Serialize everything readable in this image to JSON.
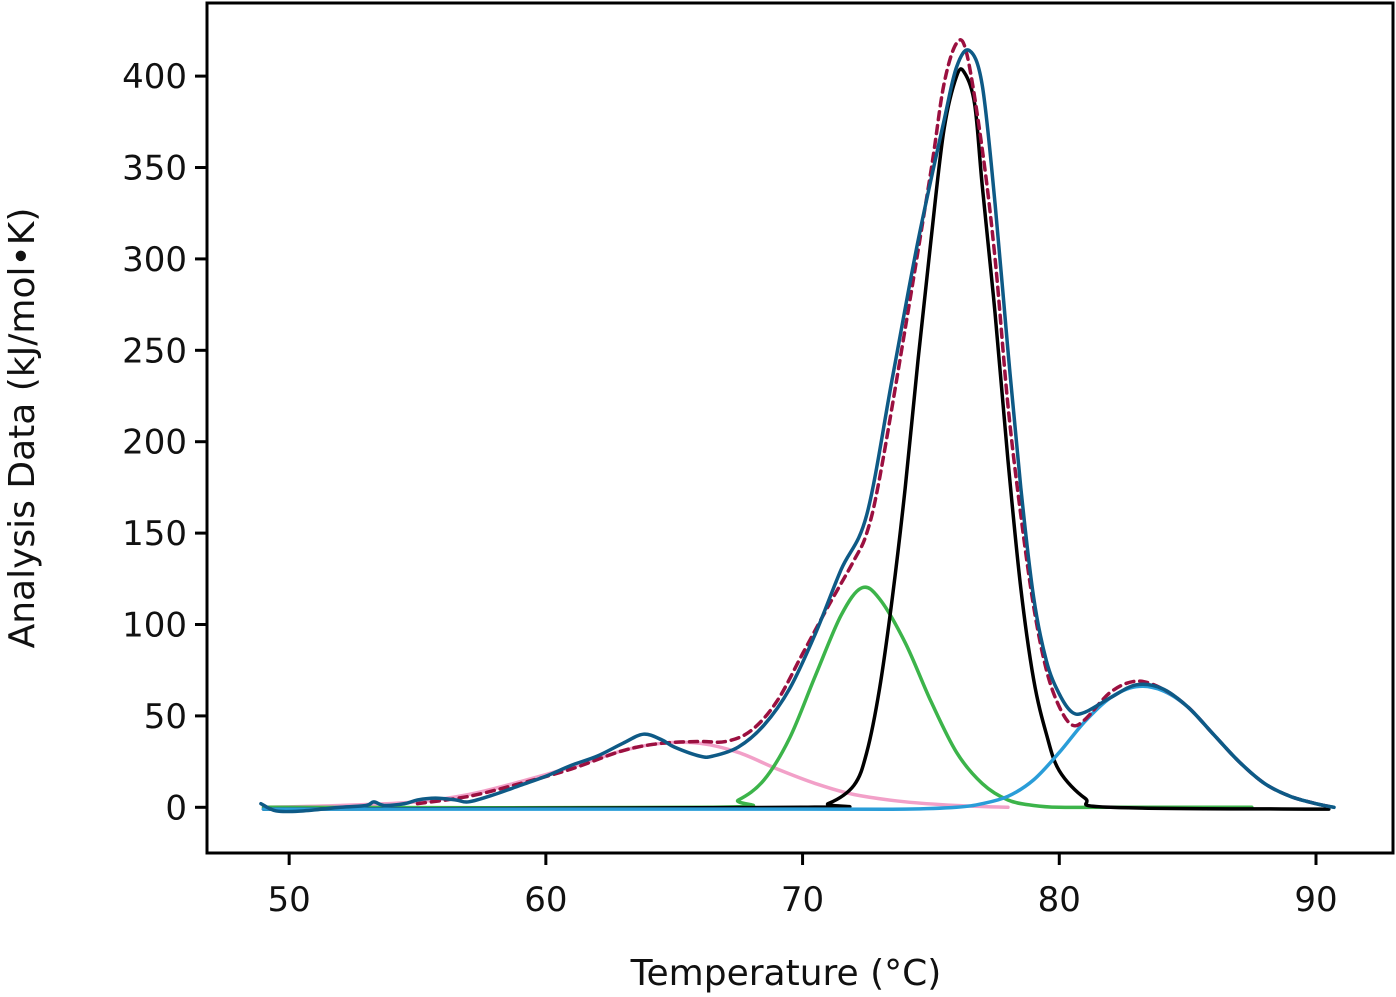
{
  "chart_data": {
    "type": "line",
    "xlabel": "Temperature (°C)",
    "ylabel": "Analysis Data (kJ/mol•K)",
    "xlim": [
      46.8,
      93.0
    ],
    "ylim": [
      -25,
      440
    ],
    "xticks": [
      50,
      60,
      70,
      80,
      90
    ],
    "yticks": [
      0,
      50,
      100,
      150,
      200,
      250,
      300,
      350,
      400
    ],
    "grid": false,
    "legend": "none",
    "series": [
      {
        "color": "#f2a0c8",
        "style": "solid",
        "x": [
          49.0,
          52.0,
          55.0,
          57.0,
          59.0,
          61.0,
          63.0,
          64.5,
          66.0,
          67.5,
          69.0,
          70.5,
          72.0,
          74.0,
          76.0,
          78.0
        ],
        "values": [
          0,
          1,
          3,
          7,
          14,
          22,
          31,
          35,
          35,
          30,
          21,
          13,
          7,
          3,
          1,
          0
        ]
      },
      {
        "color": "#3cb44a",
        "style": "solid",
        "x": [
          49.0,
          66.5,
          67.5,
          68.5,
          69.5,
          70.5,
          71.5,
          72.3,
          73.0,
          74.0,
          75.0,
          76.0,
          77.0,
          78.0,
          79.0,
          80.0,
          82.0,
          87.5
        ],
        "values": [
          0,
          0,
          4,
          15,
          38,
          72,
          105,
          120,
          114,
          90,
          58,
          30,
          13,
          4,
          1,
          0,
          0,
          0
        ]
      },
      {
        "color": "#000000",
        "style": "solid",
        "x": [
          49.0,
          70.0,
          71.0,
          72.0,
          72.5,
          73.0,
          73.5,
          74.0,
          74.5,
          75.0,
          75.5,
          76.0,
          76.3,
          76.7,
          77.0,
          77.5,
          78.0,
          78.5,
          79.0,
          79.5,
          80.0,
          81.0,
          82.0,
          90.5
        ],
        "values": [
          -1,
          0,
          2,
          12,
          30,
          65,
          115,
          175,
          245,
          310,
          370,
          400,
          402,
          385,
          340,
          270,
          190,
          120,
          70,
          40,
          20,
          5,
          0,
          -1
        ]
      },
      {
        "color": "#2a9dd8",
        "style": "solid",
        "x": [
          49.0,
          70.0,
          74.0,
          76.0,
          77.0,
          78.0,
          79.0,
          80.0,
          81.0,
          82.0,
          83.0,
          84.0,
          85.0,
          86.0,
          87.0,
          88.0,
          89.0,
          90.0,
          90.7
        ],
        "values": [
          -1,
          -1,
          -1,
          0,
          2,
          6,
          15,
          30,
          47,
          60,
          66,
          64,
          55,
          40,
          25,
          13,
          6,
          2,
          0
        ]
      },
      {
        "color": "#9b1040",
        "style": "dashed",
        "x": [
          55.0,
          57.0,
          59.0,
          61.0,
          63.0,
          64.5,
          66.0,
          67.0,
          68.0,
          69.0,
          70.0,
          71.0,
          72.0,
          72.5,
          73.0,
          74.0,
          75.0,
          75.5,
          76.0,
          76.4,
          77.0,
          77.5,
          78.0,
          78.5,
          79.0,
          79.5,
          80.0,
          80.5,
          81.0,
          82.0,
          83.0,
          84.0,
          85.0,
          86.0,
          87.0,
          88.0,
          89.0,
          90.0,
          90.7
        ],
        "values": [
          2,
          6,
          13,
          21,
          31,
          35,
          36,
          36,
          42,
          58,
          84,
          110,
          135,
          150,
          180,
          262,
          348,
          395,
          418,
          412,
          360,
          300,
          220,
          160,
          110,
          75,
          55,
          45,
          48,
          63,
          69,
          65,
          55,
          40,
          25,
          13,
          6,
          2,
          0
        ]
      },
      {
        "color": "#0e5a86",
        "style": "solid",
        "x": [
          48.9,
          49.5,
          50.5,
          52.0,
          53.0,
          53.3,
          53.7,
          54.5,
          55.0,
          55.7,
          56.5,
          57.0,
          58.0,
          59.0,
          60.0,
          61.0,
          62.0,
          63.0,
          63.8,
          64.5,
          65.0,
          66.0,
          66.5,
          67.5,
          68.5,
          69.5,
          70.5,
          71.5,
          72.5,
          73.5,
          74.5,
          75.5,
          76.0,
          76.5,
          77.0,
          77.5,
          78.0,
          78.5,
          79.0,
          79.5,
          80.0,
          80.5,
          81.0,
          82.0,
          83.0,
          84.0,
          85.0,
          86.0,
          87.0,
          88.0,
          89.0,
          90.0,
          90.7
        ],
        "values": [
          2,
          -2,
          -2,
          0,
          1,
          3,
          1,
          2,
          4,
          5,
          4,
          3,
          7,
          12,
          17,
          23,
          28,
          35,
          40,
          37,
          33,
          28,
          28,
          33,
          45,
          65,
          95,
          130,
          160,
          235,
          310,
          375,
          405,
          414,
          395,
          330,
          250,
          175,
          115,
          80,
          62,
          52,
          52,
          60,
          67,
          65,
          55,
          40,
          25,
          13,
          6,
          2,
          0
        ]
      }
    ]
  }
}
